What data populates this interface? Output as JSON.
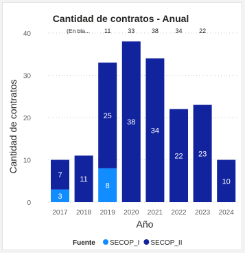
{
  "chart_data": {
    "type": "bar",
    "stacked": true,
    "title": "Cantidad de contratos - Anual",
    "xlabel": "Año",
    "ylabel": "Cantidad de contratos",
    "ylim": [
      0,
      40
    ],
    "yticks": [
      0,
      10,
      20,
      30,
      40
    ],
    "grid": true,
    "categories": [
      "2017",
      "2018",
      "2019",
      "2020",
      "2021",
      "2022",
      "2023",
      "2024"
    ],
    "series": [
      {
        "name": "SECOP_I",
        "color": "#118dff",
        "values": [
          3,
          0,
          8,
          0,
          0,
          0,
          0,
          0
        ]
      },
      {
        "name": "SECOP_II",
        "color": "#12239e",
        "values": [
          7,
          11,
          25,
          38,
          34,
          22,
          23,
          10
        ]
      }
    ],
    "top_labels": [
      "(En bla...",
      "11",
      "33",
      "38",
      "34",
      "22"
    ],
    "legend": {
      "title": "Fuente",
      "position": "bottom"
    }
  }
}
